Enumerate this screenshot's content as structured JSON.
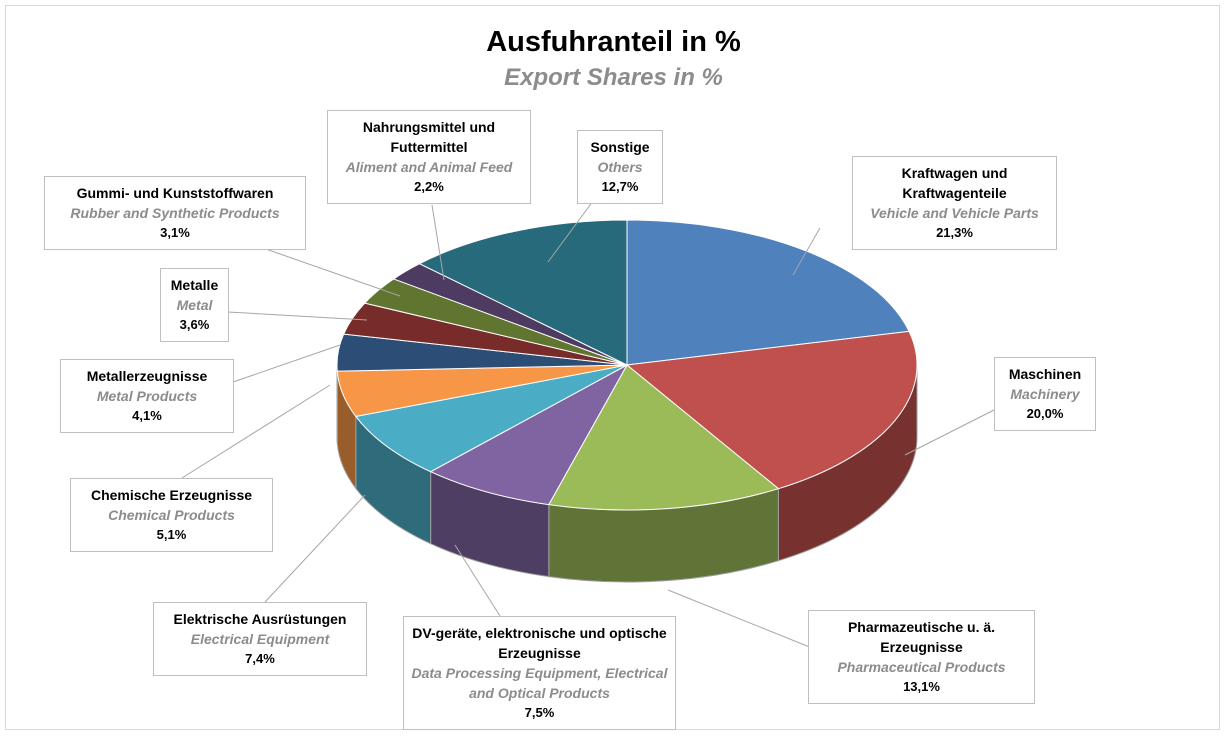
{
  "chart_data": {
    "type": "pie3d",
    "title": "Ausfuhranteil in %",
    "subtitle": "Export Shares in %",
    "categories": [
      "Kraftwagen und Kraftwagenteile",
      "Maschinen",
      "Pharmazeutische u. ä. Erzeugnisse",
      "DV-geräte, elektronische und optische Erzeugnisse",
      "Elektrische Ausrüstungen",
      "Chemische Erzeugnisse",
      "Metallerzeugnisse",
      "Metalle",
      "Gummi- und Kunststoffwaren",
      "Nahrungsmittel und Futtermittel",
      "Sonstige"
    ],
    "categories_en": [
      "Vehicle and Vehicle Parts",
      "Machinery",
      "Pharmaceutical Products",
      "Data Processing Equipment, Electrical and Optical Products",
      "Electrical Equipment",
      "Chemical Products",
      "Metal Products",
      "Metal",
      "Rubber and Synthetic Products",
      "Aliment and Animal Feed",
      "Others"
    ],
    "values": [
      21.3,
      20.0,
      13.1,
      7.5,
      7.4,
      5.1,
      4.1,
      3.6,
      3.1,
      2.2,
      12.7
    ],
    "value_labels": [
      "21,3%",
      "20,0%",
      "13,1%",
      "7,5%",
      "7,4%",
      "5,1%",
      "4,1%",
      "3,6%",
      "3,1%",
      "2,2%",
      "12,7%"
    ],
    "colors": [
      "#4f81bd",
      "#c0504d",
      "#9bbb59",
      "#8064a2",
      "#4bacc6",
      "#f79646",
      "#2c4d75",
      "#772c2a",
      "#5f7530",
      "#4d3b62",
      "#276a7c"
    ]
  }
}
